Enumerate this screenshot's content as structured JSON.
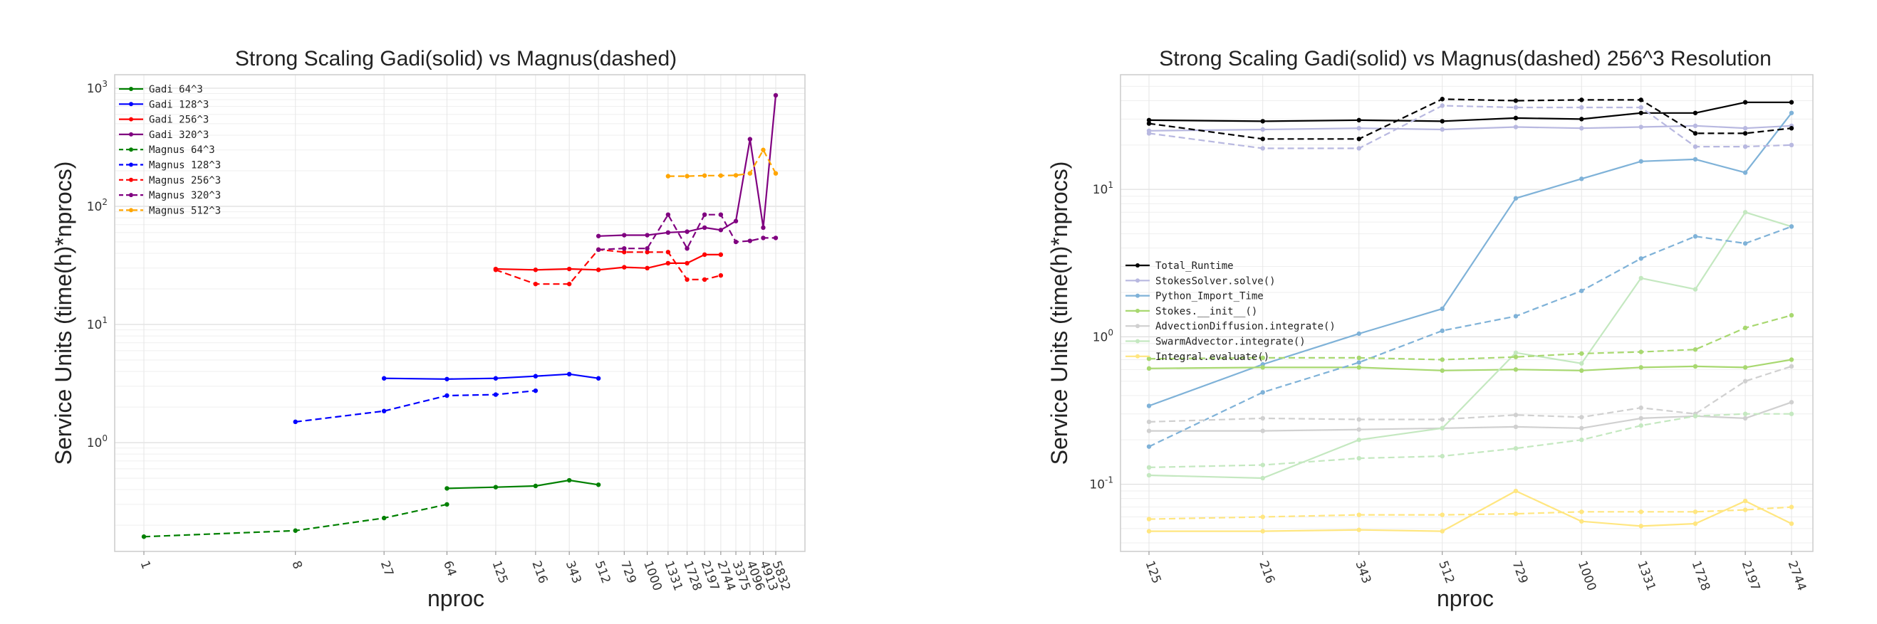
{
  "chart_data": [
    {
      "type": "line",
      "title": "Strong Scaling Gadi(solid) vs Magnus(dashed)",
      "xlabel": "nproc",
      "ylabel": "Service Units (time(h)*nprocs)",
      "xscale": "log",
      "yscale": "log",
      "ylim": [
        0.12,
        1300
      ],
      "grid": true,
      "legend": "top-left",
      "x_ticks": [
        1,
        8,
        27,
        64,
        125,
        216,
        343,
        512,
        729,
        1000,
        1331,
        1728,
        2197,
        2744,
        3375,
        4096,
        4913,
        5832
      ],
      "y_ticks": [
        {
          "value": 1,
          "label": "10^0"
        },
        {
          "value": 10,
          "label": "10^1"
        },
        {
          "value": 100,
          "label": "10^2"
        },
        {
          "value": 1000,
          "label": "10^3"
        }
      ],
      "series": [
        {
          "name": "Gadi    64^3",
          "color": "#008000",
          "dash": false,
          "x": [
            64,
            125,
            216,
            343,
            512
          ],
          "values": [
            0.41,
            0.42,
            0.43,
            0.48,
            0.44
          ]
        },
        {
          "name": "Gadi   128^3",
          "color": "#0000ff",
          "dash": false,
          "x": [
            27,
            64,
            125,
            216,
            343,
            512
          ],
          "values": [
            3.5,
            3.45,
            3.5,
            3.65,
            3.8,
            3.5
          ]
        },
        {
          "name": "Gadi   256^3",
          "color": "#ff0000",
          "dash": false,
          "x": [
            125,
            216,
            343,
            512,
            729,
            1000,
            1331,
            1728,
            2197,
            2744
          ],
          "values": [
            29.5,
            29,
            29.5,
            29,
            30.5,
            30,
            33,
            33,
            39,
            39
          ]
        },
        {
          "name": "Gadi   320^3",
          "color": "#800080",
          "dash": false,
          "x": [
            512,
            729,
            1000,
            1331,
            1728,
            2197,
            2744,
            3375,
            4096,
            4913,
            5832
          ],
          "values": [
            56,
            57,
            57,
            60,
            61,
            66,
            63,
            75,
            370,
            66,
            870
          ]
        },
        {
          "name": "Magnus  64^3",
          "color": "#008000",
          "dash": true,
          "x": [
            1,
            8,
            27,
            64
          ],
          "values": [
            0.16,
            0.18,
            0.23,
            0.3
          ]
        },
        {
          "name": "Magnus 128^3",
          "color": "#0000ff",
          "dash": true,
          "x": [
            8,
            27,
            64,
            125,
            216
          ],
          "values": [
            1.5,
            1.85,
            2.5,
            2.55,
            2.75
          ]
        },
        {
          "name": "Magnus 256^3",
          "color": "#ff0000",
          "dash": true,
          "x": [
            125,
            216,
            343,
            512,
            729,
            1000,
            1331,
            1728,
            2197,
            2744
          ],
          "values": [
            29,
            22,
            22,
            43,
            41,
            41,
            41,
            24,
            24,
            26
          ]
        },
        {
          "name": "Magnus 320^3",
          "color": "#800080",
          "dash": true,
          "x": [
            512,
            729,
            1000,
            1331,
            1728,
            2197,
            2744,
            3375,
            4096,
            4913,
            5832
          ],
          "values": [
            43,
            44,
            44,
            85,
            44,
            85,
            85,
            50,
            51,
            54,
            54
          ]
        },
        {
          "name": "Magnus 512^3",
          "color": "#ffa500",
          "dash": true,
          "x": [
            1331,
            1728,
            2197,
            2744,
            3375,
            4096,
            4913,
            5832
          ],
          "values": [
            180,
            180,
            182,
            182,
            183,
            190,
            300,
            190
          ]
        }
      ]
    },
    {
      "type": "line",
      "title": "Strong Scaling Gadi(solid) vs Magnus(dashed) 256^3 Resolution",
      "xlabel": "nproc",
      "ylabel": "Service Units (time(h)*nprocs)",
      "xscale": "log",
      "yscale": "log",
      "ylim": [
        0.035,
        60
      ],
      "grid": true,
      "legend": "center-left",
      "x_ticks": [
        125,
        216,
        343,
        512,
        729,
        1000,
        1331,
        1728,
        2197,
        2744
      ],
      "y_ticks": [
        {
          "value": 0.1,
          "label": "10^-1"
        },
        {
          "value": 1,
          "label": "10^0"
        },
        {
          "value": 10,
          "label": "10^1"
        }
      ],
      "series": [
        {
          "name": "Total_Runtime",
          "color": "#000000",
          "dash": false,
          "x": [
            125,
            216,
            343,
            512,
            729,
            1000,
            1331,
            1728,
            2197,
            2744
          ],
          "values": [
            29.5,
            29,
            29.5,
            29,
            30.5,
            30,
            33,
            33,
            39,
            39
          ]
        },
        {
          "name": "StokesSolver.solve()",
          "color": "#b8b8e0",
          "dash": false,
          "x": [
            125,
            216,
            343,
            512,
            729,
            1000,
            1331,
            1728,
            2197,
            2744
          ],
          "values": [
            25,
            25.5,
            26,
            25.5,
            26.5,
            26,
            26.5,
            27,
            26,
            27
          ]
        },
        {
          "name": "Python_Import_Time",
          "color": "#7fb2d8",
          "dash": false,
          "x": [
            125,
            216,
            343,
            512,
            729,
            1000,
            1331,
            1728,
            2197,
            2744
          ],
          "values": [
            0.34,
            0.65,
            1.05,
            1.55,
            8.7,
            11.8,
            15.5,
            16,
            13,
            33
          ]
        },
        {
          "name": "Stokes.__init__()",
          "color": "#a8d870",
          "dash": false,
          "x": [
            125,
            216,
            343,
            512,
            729,
            1000,
            1331,
            1728,
            2197,
            2744
          ],
          "values": [
            0.61,
            0.62,
            0.62,
            0.59,
            0.6,
            0.59,
            0.62,
            0.63,
            0.62,
            0.7
          ]
        },
        {
          "name": "AdvectionDiffusion.integrate()",
          "color": "#d0d0d0",
          "dash": false,
          "x": [
            125,
            216,
            343,
            512,
            729,
            1000,
            1331,
            1728,
            2197,
            2744
          ],
          "values": [
            0.23,
            0.23,
            0.235,
            0.24,
            0.245,
            0.24,
            0.28,
            0.29,
            0.28,
            0.36
          ]
        },
        {
          "name": "SwarmAdvector.integrate()",
          "color": "#c4e8c0",
          "dash": false,
          "x": [
            125,
            216,
            343,
            512,
            729,
            1000,
            1331,
            1728,
            2197,
            2744
          ],
          "values": [
            0.115,
            0.11,
            0.2,
            0.24,
            0.78,
            0.66,
            2.5,
            2.1,
            7,
            5.6
          ]
        },
        {
          "name": "Integral.evaluate()",
          "color": "#ffe680",
          "dash": false,
          "x": [
            125,
            216,
            343,
            512,
            729,
            1000,
            1331,
            1728,
            2197,
            2744
          ],
          "values": [
            0.048,
            0.048,
            0.049,
            0.048,
            0.09,
            0.056,
            0.052,
            0.054,
            0.077,
            0.054
          ]
        },
        {
          "color": "#000000",
          "dash": true,
          "x": [
            125,
            216,
            343,
            512,
            729,
            1000,
            1331,
            1728,
            2197,
            2744
          ],
          "values": [
            28,
            22,
            22,
            41,
            40,
            40.5,
            40.5,
            24,
            24,
            26
          ]
        },
        {
          "color": "#b8b8e0",
          "dash": true,
          "x": [
            125,
            216,
            343,
            512,
            729,
            1000,
            1331,
            1728,
            2197,
            2744
          ],
          "values": [
            24,
            19,
            19,
            37,
            36,
            36,
            36,
            19.5,
            19.5,
            20
          ]
        },
        {
          "color": "#7fb2d8",
          "dash": true,
          "x": [
            125,
            216,
            343,
            512,
            729,
            1000,
            1331,
            1728,
            2197,
            2744
          ],
          "values": [
            0.18,
            0.42,
            0.67,
            1.1,
            1.38,
            2.05,
            3.4,
            4.8,
            4.3,
            5.6
          ]
        },
        {
          "color": "#a8d870",
          "dash": true,
          "x": [
            125,
            216,
            343,
            512,
            729,
            1000,
            1331,
            1728,
            2197,
            2744
          ],
          "values": [
            0.71,
            0.72,
            0.72,
            0.7,
            0.73,
            0.77,
            0.79,
            0.82,
            1.15,
            1.4
          ]
        },
        {
          "color": "#d0d0d0",
          "dash": true,
          "x": [
            125,
            216,
            343,
            512,
            729,
            1000,
            1331,
            1728,
            2197,
            2744
          ],
          "values": [
            0.265,
            0.28,
            0.275,
            0.275,
            0.295,
            0.285,
            0.33,
            0.3,
            0.5,
            0.63
          ]
        },
        {
          "color": "#c4e8c0",
          "dash": true,
          "x": [
            125,
            216,
            343,
            512,
            729,
            1000,
            1331,
            1728,
            2197,
            2744
          ],
          "values": [
            0.13,
            0.135,
            0.15,
            0.155,
            0.175,
            0.2,
            0.25,
            0.29,
            0.3,
            0.3
          ]
        },
        {
          "color": "#ffe680",
          "dash": true,
          "x": [
            125,
            216,
            343,
            512,
            729,
            1000,
            1331,
            1728,
            2197,
            2744
          ],
          "values": [
            0.058,
            0.06,
            0.062,
            0.062,
            0.063,
            0.065,
            0.065,
            0.065,
            0.067,
            0.07
          ]
        }
      ]
    }
  ]
}
